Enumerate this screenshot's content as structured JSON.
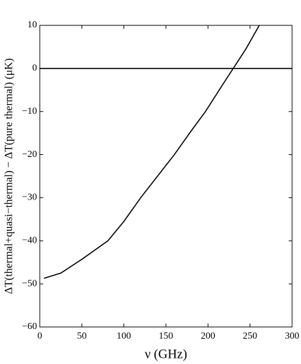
{
  "chart_data": {
    "type": "line",
    "x_label": "ν (GHz)",
    "y_label": "ΔT(thermal+quasi−thermal) − ΔT(pure thermal) (μK)",
    "x": [
      5,
      25,
      50,
      81,
      100,
      120,
      140,
      160,
      180,
      197,
      215,
      230,
      245,
      261
    ],
    "series": [
      {
        "color": "#000000",
        "values": [
          -48.7,
          -47.5,
          -44.3,
          -40,
          -35.5,
          -30,
          -25,
          -20,
          -14.5,
          -10,
          -4.5,
          0,
          4.5,
          10
        ]
      }
    ],
    "reference_line": 0,
    "xlim": [
      0,
      300
    ],
    "xticks": [
      0,
      50,
      100,
      150,
      200,
      250,
      300
    ],
    "ylim": [
      -60,
      10
    ],
    "yticks": [
      {
        "value": -60,
        "label": "−60"
      },
      {
        "value": -50,
        "label": "−50"
      },
      {
        "value": -40,
        "label": "−40"
      },
      {
        "value": -30,
        "label": "−30"
      },
      {
        "value": -20,
        "label": "−20"
      },
      {
        "value": -10,
        "label": "−10"
      },
      0,
      10
    ]
  }
}
